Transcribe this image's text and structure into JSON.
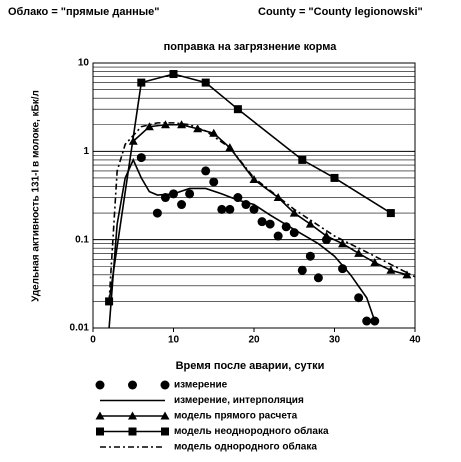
{
  "chart_data": {
    "type": "line",
    "header_left": "Облако = \"прямые данные\"",
    "header_right": "County = \"County legionowski\"",
    "title": "поправка на загрязнение корма",
    "x_label": "Время после аварии, сутки",
    "y_label": "Удельная активность 131-I в молоке, кБк/л",
    "log_y": true,
    "grid": true,
    "xlim": [
      0,
      40
    ],
    "ylim": [
      0.01,
      10
    ],
    "xticks": [
      0,
      10,
      20,
      30,
      40
    ],
    "yticks": [
      0.01,
      0.1,
      1,
      10
    ],
    "series": [
      {
        "name": "измерение",
        "color": "#000000",
        "marker": "circle",
        "line": "none",
        "x": [
          6,
          8,
          9,
          10,
          11,
          12,
          14,
          15,
          16,
          17,
          18,
          19,
          20,
          21,
          22,
          23,
          24,
          25,
          26,
          27,
          28,
          29,
          31,
          33,
          34,
          35
        ],
        "values": [
          0.85,
          0.2,
          0.3,
          0.33,
          0.25,
          0.33,
          0.6,
          0.45,
          0.22,
          0.22,
          0.3,
          0.25,
          0.22,
          0.16,
          0.15,
          0.11,
          0.14,
          0.12,
          0.045,
          0.065,
          0.037,
          0.1,
          0.047,
          0.022,
          0.012,
          0.012
        ]
      },
      {
        "name": "измерение, интерполяция",
        "color": "#000000",
        "marker": "none",
        "line": "solid",
        "x": [
          2,
          3,
          4,
          5,
          6,
          7,
          8,
          10,
          12,
          14,
          16,
          18,
          20,
          22,
          25,
          28,
          30,
          32,
          34,
          35
        ],
        "values": [
          0.01,
          0.15,
          0.5,
          0.8,
          0.5,
          0.35,
          0.32,
          0.33,
          0.38,
          0.38,
          0.33,
          0.28,
          0.25,
          0.19,
          0.13,
          0.09,
          0.065,
          0.04,
          0.022,
          0.012
        ]
      },
      {
        "name": "модель прямого расчета",
        "color": "#000000",
        "marker": "triangle",
        "line": "solid",
        "x": [
          5,
          7,
          9,
          11,
          13,
          15,
          17,
          20,
          23,
          25,
          27,
          29,
          31,
          33,
          35,
          37,
          39
        ],
        "values": [
          1.3,
          1.9,
          2,
          2,
          1.8,
          1.6,
          1.1,
          0.48,
          0.3,
          0.2,
          0.15,
          0.11,
          0.09,
          0.07,
          0.055,
          0.045,
          0.04
        ]
      },
      {
        "name": "модель неоднородного облака",
        "color": "#000000",
        "marker": "square",
        "line": "solid",
        "x": [
          2,
          6,
          10,
          14,
          18,
          26,
          30,
          37
        ],
        "values": [
          0.02,
          6,
          7.5,
          6,
          3,
          0.8,
          0.5,
          0.2
        ]
      },
      {
        "name": "модель однородного облака",
        "color": "#000000",
        "marker": "none",
        "line": "dashdot",
        "x": [
          2,
          3,
          4,
          6,
          8,
          10,
          12,
          14,
          17,
          20,
          25,
          30,
          35,
          40
        ],
        "values": [
          0.02,
          0.6,
          1.2,
          1.9,
          2.1,
          2.1,
          2,
          1.7,
          1.1,
          0.5,
          0.22,
          0.11,
          0.065,
          0.038
        ]
      }
    ]
  }
}
